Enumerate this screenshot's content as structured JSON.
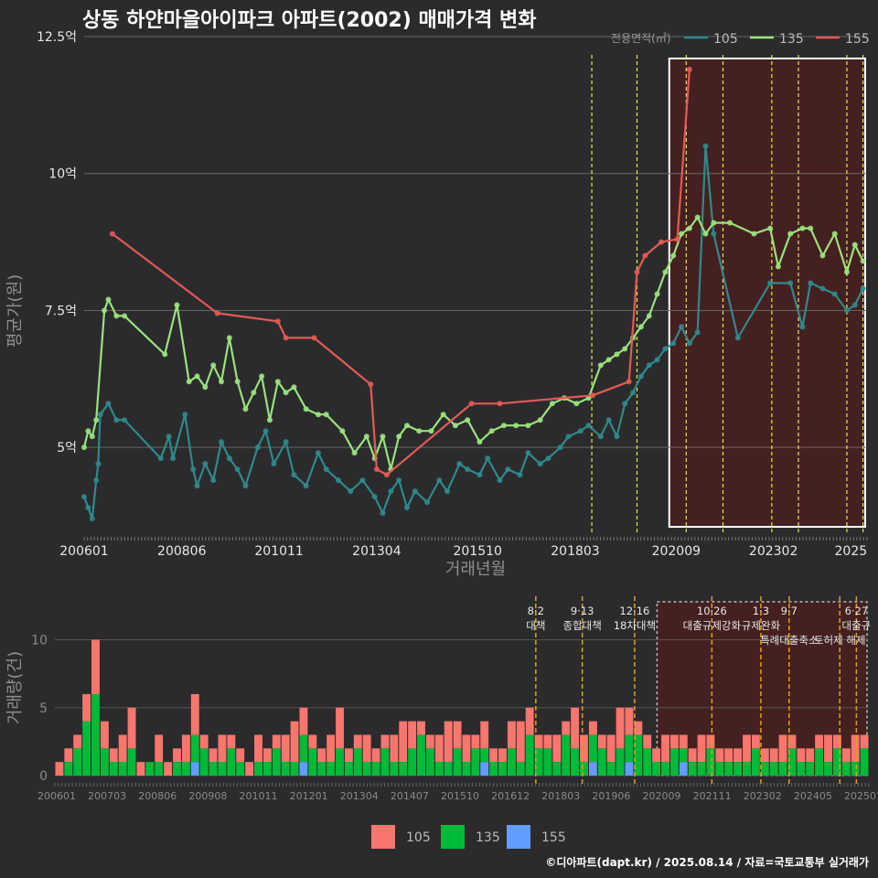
{
  "title": "상동 하얀마을아이파크 아파트(2002) 매매가격 변화",
  "footer": "©디아파트(dapt.kr) / 2025.08.14 / 자료=국토교통부 실거래가",
  "colors": {
    "background": "#2b2b2d",
    "s105": "#2f8a8c",
    "s135": "#9be27d",
    "s155": "#e35a55",
    "v105": "#f8766d",
    "v135": "#00ba38",
    "v155": "#619cff",
    "policy_line": "#e8e84a",
    "volume_policy_line": "#e0a020",
    "highlight_fill": "#4a1f1f"
  },
  "chart_data": [
    {
      "type": "line",
      "title": "상동 하얀마을아이파크 아파트(2002) 매매가격 변화",
      "xlabel": "거래년월",
      "ylabel": "평균가(원)",
      "ylim": [
        3.4,
        12.5
      ],
      "yticks": [
        5,
        7.5,
        10,
        12.5
      ],
      "ytick_labels": [
        "5억",
        "7.5억",
        "10억",
        "12.5억"
      ],
      "xlim": [
        2006.0,
        2025.4
      ],
      "xticks": [
        2006.0,
        2008.42,
        2010.83,
        2013.25,
        2015.75,
        2018.17,
        2020.67,
        2023.08,
        2025.0
      ],
      "xtick_labels": [
        "200601",
        "200806",
        "201011",
        "201304",
        "201510",
        "201803",
        "202009",
        "202302",
        "2025"
      ],
      "legend_title": "전용면적(㎡)",
      "legend_position": "top-right",
      "grid": true,
      "highlight_range": [
        2020.5,
        2025.4
      ],
      "policy_lines": [
        2018.58,
        2019.7,
        2020.92,
        2021.83,
        2023.04,
        2023.7,
        2024.9,
        2025.3
      ],
      "series": [
        {
          "name": "105",
          "x": [
            2006.0,
            2006.1,
            2006.2,
            2006.3,
            2006.35,
            2006.4,
            2006.6,
            2006.8,
            2007.0,
            2007.9,
            2008.1,
            2008.2,
            2008.5,
            2008.7,
            2008.8,
            2009.0,
            2009.2,
            2009.4,
            2009.6,
            2009.8,
            2010.0,
            2010.3,
            2010.5,
            2010.7,
            2011.0,
            2011.2,
            2011.5,
            2011.8,
            2012.0,
            2012.3,
            2012.6,
            2012.9,
            2013.2,
            2013.4,
            2013.6,
            2013.8,
            2014.0,
            2014.2,
            2014.5,
            2014.8,
            2015.0,
            2015.3,
            2015.5,
            2015.8,
            2016.0,
            2016.3,
            2016.5,
            2016.8,
            2017.0,
            2017.3,
            2017.5,
            2017.8,
            2018.0,
            2018.3,
            2018.5,
            2018.8,
            2019.0,
            2019.2,
            2019.4,
            2019.6,
            2019.8,
            2020.0,
            2020.2,
            2020.4,
            2020.6,
            2020.8,
            2021.0,
            2021.2,
            2021.4,
            2021.6,
            2022.2,
            2023.0,
            2023.5,
            2023.8,
            2024.0,
            2024.3,
            2024.6,
            2024.9,
            2025.1,
            2025.3
          ],
          "y": [
            4.1,
            3.9,
            3.7,
            4.4,
            4.7,
            5.6,
            5.8,
            5.5,
            5.5,
            4.8,
            5.2,
            4.8,
            5.6,
            4.6,
            4.3,
            4.7,
            4.4,
            5.1,
            4.8,
            4.6,
            4.3,
            5.0,
            5.3,
            4.7,
            5.1,
            4.5,
            4.3,
            4.9,
            4.6,
            4.4,
            4.2,
            4.4,
            4.1,
            3.8,
            4.2,
            4.4,
            3.9,
            4.2,
            4.0,
            4.4,
            4.2,
            4.7,
            4.6,
            4.5,
            4.8,
            4.4,
            4.6,
            4.5,
            4.9,
            4.7,
            4.8,
            5.0,
            5.2,
            5.3,
            5.4,
            5.2,
            5.5,
            5.2,
            5.8,
            6.0,
            6.3,
            6.5,
            6.6,
            6.8,
            6.9,
            7.2,
            6.9,
            7.1,
            10.5,
            8.9,
            7.0,
            8.0,
            8.0,
            7.2,
            8.0,
            7.9,
            7.8,
            7.5,
            7.6,
            7.9
          ]
        },
        {
          "name": "135",
          "x": [
            2006.0,
            2006.1,
            2006.2,
            2006.3,
            2006.5,
            2006.6,
            2006.8,
            2007.0,
            2008.0,
            2008.3,
            2008.6,
            2008.8,
            2009.0,
            2009.2,
            2009.4,
            2009.6,
            2009.8,
            2010.0,
            2010.2,
            2010.4,
            2010.6,
            2010.8,
            2011.0,
            2011.2,
            2011.5,
            2011.8,
            2012.0,
            2012.4,
            2012.7,
            2013.0,
            2013.2,
            2013.4,
            2013.6,
            2013.8,
            2014.0,
            2014.3,
            2014.6,
            2014.9,
            2015.2,
            2015.5,
            2015.8,
            2016.1,
            2016.4,
            2016.7,
            2017.0,
            2017.3,
            2017.6,
            2017.9,
            2018.2,
            2018.5,
            2018.8,
            2019.0,
            2019.2,
            2019.4,
            2019.6,
            2019.8,
            2020.0,
            2020.2,
            2020.4,
            2020.6,
            2020.8,
            2021.0,
            2021.2,
            2021.4,
            2021.6,
            2022.0,
            2022.6,
            2023.0,
            2023.2,
            2023.5,
            2023.8,
            2024.0,
            2024.3,
            2024.6,
            2024.9,
            2025.1,
            2025.3
          ],
          "y": [
            5.0,
            5.3,
            5.2,
            5.5,
            7.5,
            7.7,
            7.4,
            7.4,
            6.7,
            7.6,
            6.2,
            6.3,
            6.1,
            6.5,
            6.2,
            7.0,
            6.2,
            5.7,
            6.0,
            6.3,
            5.5,
            6.2,
            6.0,
            6.1,
            5.7,
            5.6,
            5.6,
            5.3,
            4.9,
            5.2,
            4.8,
            5.2,
            4.6,
            5.2,
            5.4,
            5.3,
            5.3,
            5.6,
            5.4,
            5.5,
            5.1,
            5.3,
            5.4,
            5.4,
            5.4,
            5.5,
            5.8,
            5.9,
            5.8,
            5.9,
            6.5,
            6.6,
            6.7,
            6.8,
            7.0,
            7.2,
            7.4,
            7.8,
            8.2,
            8.5,
            8.9,
            9.0,
            9.2,
            8.9,
            9.1,
            9.1,
            8.9,
            9.0,
            8.3,
            8.9,
            9.0,
            9.0,
            8.5,
            8.9,
            8.2,
            8.7,
            8.4
          ]
        },
        {
          "name": "155",
          "x": [
            2006.7,
            2009.3,
            2010.8,
            2011.0,
            2011.7,
            2013.1,
            2013.25,
            2013.5,
            2015.6,
            2016.3,
            2018.6,
            2019.5,
            2019.7,
            2019.9,
            2020.3,
            2020.7,
            2021.0
          ],
          "y": [
            8.9,
            7.45,
            7.3,
            7.0,
            7.0,
            6.15,
            4.6,
            4.5,
            5.8,
            5.8,
            5.95,
            6.2,
            8.2,
            8.5,
            8.75,
            8.8,
            11.9
          ]
        }
      ]
    },
    {
      "type": "bar",
      "xlabel": "",
      "ylabel": "거래량(건)",
      "ylim": [
        0,
        13
      ],
      "yticks": [
        0,
        5,
        10
      ],
      "ytick_labels": [
        "0",
        "5",
        "10"
      ],
      "xtick_labels": [
        "200601",
        "200703",
        "200806",
        "200908",
        "201011",
        "201201",
        "201304",
        "201407",
        "201510",
        "201612",
        "201803",
        "201906",
        "202009",
        "202111",
        "202302",
        "202405",
        "202507"
      ],
      "legend_position": "bottom",
      "stacked": true,
      "highlight_range": [
        2020.5,
        2025.4
      ],
      "policy_annotations": [
        {
          "date": "8·2",
          "label": "대책",
          "x": 2017.58
        },
        {
          "date": "9·13",
          "label": "종합대책",
          "x": 2018.7
        },
        {
          "date": "12·16",
          "label": "18차대책",
          "x": 2019.96
        },
        {
          "date": "10·26",
          "label": "대출규제강화",
          "x": 2021.82
        },
        {
          "date": "1·3",
          "label": "규제완화",
          "x": 2023.0
        },
        {
          "date": "9·7",
          "label": "특례대출축소",
          "x": 2023.68
        },
        {
          "date": "",
          "label": "토허제 해제",
          "x": 2024.9
        },
        {
          "date": "6·27",
          "label": "대출규",
          "x": 2025.3
        }
      ],
      "series": [
        {
          "name": "105",
          "values": [
            1,
            1,
            1,
            2,
            4,
            2,
            1,
            2,
            3,
            1,
            0,
            2,
            1,
            1,
            2,
            3,
            1,
            1,
            2,
            1,
            1,
            1,
            2,
            1,
            1,
            2,
            3,
            2,
            1,
            1,
            2,
            3,
            1,
            1,
            2,
            1,
            1,
            2,
            3,
            2,
            1,
            1,
            2,
            3,
            2,
            2,
            1,
            2,
            1,
            1,
            2,
            3,
            2,
            1,
            1,
            2,
            1,
            3,
            2,
            1,
            1,
            2,
            3,
            2,
            1,
            1,
            1,
            2,
            1,
            1,
            1,
            2,
            1,
            1,
            1,
            1,
            2,
            1,
            1,
            1,
            2,
            1,
            1,
            1,
            1,
            2,
            1,
            1,
            2,
            1
          ]
        },
        {
          "name": "135",
          "values": [
            0,
            1,
            2,
            4,
            6,
            2,
            1,
            1,
            2,
            0,
            1,
            1,
            0,
            1,
            1,
            2,
            2,
            1,
            1,
            2,
            1,
            0,
            1,
            1,
            2,
            1,
            1,
            2,
            2,
            1,
            1,
            2,
            1,
            2,
            1,
            1,
            2,
            1,
            1,
            2,
            3,
            2,
            1,
            1,
            2,
            1,
            2,
            1,
            1,
            1,
            2,
            1,
            3,
            2,
            2,
            1,
            3,
            2,
            1,
            2,
            2,
            1,
            2,
            2,
            3,
            2,
            1,
            1,
            2,
            1,
            1,
            1,
            2,
            1,
            1,
            1,
            1,
            2,
            1,
            1,
            1,
            2,
            1,
            1,
            2,
            1,
            2,
            1,
            1,
            2
          ]
        },
        {
          "name": "155",
          "values": [
            0,
            0,
            0,
            0,
            0,
            0,
            0,
            0,
            0,
            0,
            0,
            0,
            0,
            0,
            0,
            1,
            0,
            0,
            0,
            0,
            0,
            0,
            0,
            0,
            0,
            0,
            0,
            1,
            0,
            0,
            0,
            0,
            0,
            0,
            0,
            0,
            0,
            0,
            0,
            0,
            0,
            0,
            0,
            0,
            0,
            0,
            0,
            1,
            0,
            0,
            0,
            0,
            0,
            0,
            0,
            0,
            0,
            0,
            0,
            1,
            0,
            0,
            0,
            1,
            0,
            0,
            0,
            0,
            0,
            1,
            0,
            0,
            0,
            0,
            0,
            0,
            0,
            0,
            0,
            0,
            0,
            0,
            0,
            0,
            0,
            0,
            0,
            0,
            0,
            0
          ]
        }
      ]
    }
  ]
}
